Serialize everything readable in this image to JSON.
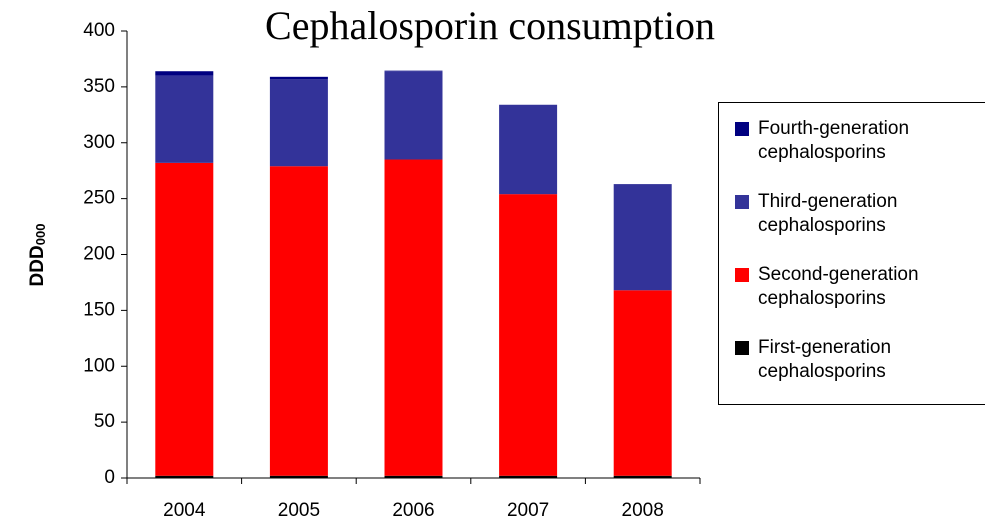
{
  "chart_data": {
    "type": "stacked_bar",
    "title": "Cephalosporin consumption",
    "y_label": "DDD",
    "y_label_subscript": "000",
    "categories": [
      "2004",
      "2005",
      "2006",
      "2007",
      "2008"
    ],
    "series": [
      {
        "name": "First-generation cephalosporins",
        "color": "#000000",
        "values": [
          2,
          2,
          2,
          2,
          2
        ]
      },
      {
        "name": "Second-generation cephalosporins",
        "color": "#ff0000",
        "values": [
          280,
          277,
          283,
          252,
          166
        ]
      },
      {
        "name": "Third-generation cephalosporins",
        "color": "#333399",
        "values": [
          78,
          78,
          79,
          80,
          95
        ]
      },
      {
        "name": "Fourth-generation cephalosporins",
        "color": "#000080",
        "values": [
          4,
          2,
          0.5,
          0,
          0
        ]
      }
    ],
    "ylim": [
      0,
      400
    ],
    "yticks": [
      0,
      50,
      100,
      150,
      200,
      250,
      300,
      350,
      400
    ]
  }
}
